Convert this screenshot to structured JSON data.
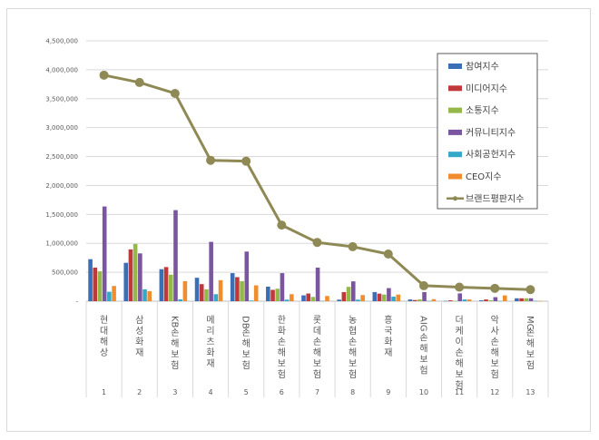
{
  "chart_data": {
    "type": "bar",
    "title": "",
    "xlabel": "",
    "ylabel": "",
    "ylim": [
      0,
      4500000
    ],
    "yticks": [
      "-",
      "500,000",
      "1,000,000",
      "1,500,000",
      "2,000,000",
      "2,500,000",
      "3,000,000",
      "3,500,000",
      "4,000,000",
      "4,500,000"
    ],
    "grid": true,
    "legend_position": "upper right (inside)",
    "categories": [
      "현대해상",
      "삼성화재",
      "KB손해보험",
      "메리츠화재",
      "DB손해보험",
      "한화손해보험",
      "롯데손해보험",
      "농협손해보험",
      "흥국화재",
      "AIG손해보험",
      "더케이손해보험",
      "악사손해보험",
      "MG손해보험"
    ],
    "ranks": [
      "1",
      "2",
      "3",
      "4",
      "5",
      "6",
      "7",
      "8",
      "9",
      "10",
      "11",
      "12",
      "13"
    ],
    "series": [
      {
        "name": "참여지수",
        "kind": "bar",
        "color": "#3a6fb6",
        "values": [
          726000,
          663000,
          553000,
          405000,
          485000,
          252000,
          101000,
          27000,
          158000,
          30000,
          5000,
          15000,
          50000
        ]
      },
      {
        "name": "미디어지수",
        "kind": "bar",
        "color": "#c0393a",
        "values": [
          580000,
          895000,
          590000,
          295000,
          416000,
          196000,
          133000,
          158000,
          131000,
          20000,
          15000,
          30000,
          50000
        ]
      },
      {
        "name": "소통지수",
        "kind": "bar",
        "color": "#94b84a",
        "values": [
          516000,
          990000,
          458000,
          205000,
          347000,
          216000,
          74000,
          248000,
          115000,
          30000,
          5000,
          15000,
          50000
        ]
      },
      {
        "name": "커뮤니티지수",
        "kind": "bar",
        "color": "#7a56a0",
        "values": [
          1637000,
          826000,
          1574000,
          1026000,
          858000,
          485000,
          580000,
          343000,
          226000,
          158000,
          135000,
          70000,
          50000
        ]
      },
      {
        "name": "사회공헌지수",
        "kind": "bar",
        "color": "#34a8c6",
        "values": [
          163000,
          205000,
          32000,
          121000,
          12000,
          27000,
          5000,
          27000,
          79000,
          5000,
          30000,
          5000,
          5000
        ]
      },
      {
        "name": "CEO지수",
        "kind": "bar",
        "color": "#f08d2e",
        "values": [
          263000,
          174000,
          347000,
          363000,
          274000,
          121000,
          90000,
          106000,
          115000,
          35000,
          30000,
          100000,
          5000
        ]
      },
      {
        "name": "브랜드평판지수",
        "kind": "line",
        "color": "#8f8a55",
        "values": [
          3907000,
          3780000,
          3591000,
          2435000,
          2420000,
          1315000,
          1016000,
          942000,
          815000,
          268000,
          243000,
          222000,
          200000
        ]
      }
    ]
  }
}
